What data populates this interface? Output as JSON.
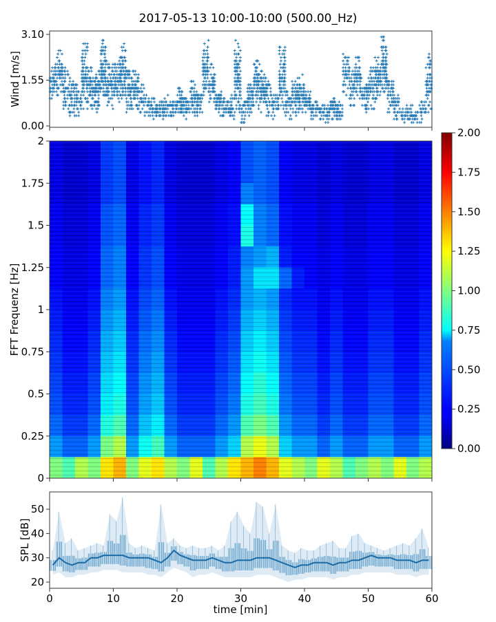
{
  "chart_data": [
    {
      "type": "scatter",
      "title": "2017-05-13 10:00-10:00 (500.00_Hz)",
      "xlabel": "",
      "ylabel": "Wind [m/s]",
      "xlim": [
        0,
        60
      ],
      "ylim": [
        0,
        3.1
      ],
      "ytick_labels": [
        "3.10",
        "1.55",
        "0.00"
      ],
      "yticks": [
        3.1,
        1.55,
        0
      ],
      "xticks": [
        0,
        10,
        20,
        30,
        40,
        50,
        60
      ],
      "marker": "+",
      "color": "#1f77b4",
      "minutes": [
        0,
        1,
        2,
        3,
        4,
        5,
        6,
        7,
        8,
        9,
        10,
        11,
        12,
        13,
        14,
        15,
        16,
        17,
        18,
        19,
        20,
        21,
        22,
        23,
        24,
        25,
        26,
        27,
        28,
        29,
        30,
        31,
        32,
        33,
        34,
        35,
        36,
        37,
        38,
        39,
        40,
        41,
        42,
        43,
        44,
        45,
        46,
        47,
        48,
        49,
        50,
        51,
        52,
        53,
        54,
        55,
        56,
        57,
        58,
        59
      ],
      "wind_min": [
        0.9,
        1.0,
        0.6,
        0.3,
        0.3,
        0.6,
        0.6,
        0.5,
        0.8,
        0.6,
        0.7,
        0.8,
        0.5,
        0.6,
        0.3,
        0.3,
        0.2,
        0.2,
        0.2,
        0.2,
        0.3,
        0.2,
        0.4,
        0.3,
        0.9,
        0.7,
        0.3,
        0.2,
        0.2,
        0.3,
        0.1,
        0.3,
        0.6,
        0.5,
        0.3,
        0.2,
        0.5,
        0.2,
        0.4,
        0.5,
        0.3,
        0.2,
        0.1,
        0.1,
        0.2,
        0.1,
        1.0,
        0.7,
        0.8,
        0.5,
        0.6,
        0.8,
        0.9,
        0.5,
        0.2,
        0.1,
        0.1,
        0.1,
        0.1,
        0.4
      ],
      "wind_max": [
        2.1,
        2.6,
        2.0,
        1.6,
        1.4,
        2.9,
        2.0,
        2.0,
        2.9,
        2.2,
        2.3,
        2.8,
        1.9,
        2.0,
        1.4,
        1.0,
        0.9,
        0.9,
        1.1,
        0.9,
        1.3,
        1.0,
        1.6,
        1.2,
        2.9,
        2.2,
        1.3,
        0.9,
        1.1,
        2.9,
        1.0,
        1.5,
        2.3,
        1.9,
        1.5,
        1.1,
        2.8,
        1.2,
        1.7,
        1.8,
        1.2,
        0.9,
        0.9,
        0.7,
        1.0,
        0.9,
        2.5,
        2.0,
        2.4,
        1.6,
        2.0,
        2.4,
        3.1,
        1.6,
        1.1,
        0.6,
        0.7,
        0.5,
        0.9,
        2.6
      ]
    },
    {
      "type": "heatmap",
      "ylabel": "FFT Frequenz [Hz]",
      "xlim": [
        0,
        60
      ],
      "ylim": [
        0,
        2
      ],
      "ytick_labels": [
        "0",
        "0.25",
        "0.5",
        "0.75",
        "1",
        "1.25",
        "1.5",
        "1.75",
        "2"
      ],
      "yticks": [
        0,
        0.25,
        0.5,
        0.75,
        1,
        1.25,
        1.5,
        1.75,
        2
      ],
      "time_bin_minutes": 2,
      "freq_bin_hz": 0.125,
      "colormap": "jet",
      "clim": [
        0,
        2
      ],
      "colorbar_tick_labels": [
        "0.00",
        "0.25",
        "0.50",
        "0.75",
        "1.00",
        "1.25",
        "1.50",
        "1.75",
        "2.00"
      ],
      "values_top_to_bottom": [
        [
          0.2,
          0.16,
          0.16,
          0.2,
          0.36,
          0.4,
          0.2,
          0.28,
          0.32,
          0.2,
          0.16,
          0.16,
          0.16,
          0.2,
          0.24,
          0.4,
          0.44,
          0.4,
          0.24,
          0.2,
          0.2,
          0.16,
          0.2,
          0.16,
          0.16,
          0.2,
          0.2,
          0.16,
          0.16,
          0.2
        ],
        [
          0.2,
          0.16,
          0.16,
          0.2,
          0.36,
          0.4,
          0.2,
          0.28,
          0.32,
          0.2,
          0.16,
          0.16,
          0.16,
          0.2,
          0.24,
          0.4,
          0.44,
          0.4,
          0.24,
          0.2,
          0.2,
          0.16,
          0.2,
          0.16,
          0.16,
          0.2,
          0.2,
          0.16,
          0.16,
          0.2
        ],
        [
          0.2,
          0.16,
          0.16,
          0.2,
          0.36,
          0.4,
          0.2,
          0.28,
          0.32,
          0.2,
          0.16,
          0.16,
          0.16,
          0.2,
          0.24,
          0.5,
          0.44,
          0.4,
          0.24,
          0.2,
          0.2,
          0.16,
          0.2,
          0.16,
          0.16,
          0.2,
          0.2,
          0.16,
          0.16,
          0.2
        ],
        [
          0.23,
          0.18,
          0.18,
          0.23,
          0.41,
          0.45,
          0.23,
          0.32,
          0.36,
          0.23,
          0.18,
          0.18,
          0.18,
          0.23,
          0.27,
          0.75,
          0.5,
          0.45,
          0.27,
          0.23,
          0.23,
          0.18,
          0.23,
          0.18,
          0.18,
          0.23,
          0.23,
          0.18,
          0.18,
          0.23
        ],
        [
          0.23,
          0.18,
          0.18,
          0.23,
          0.41,
          0.45,
          0.23,
          0.32,
          0.36,
          0.23,
          0.18,
          0.18,
          0.18,
          0.23,
          0.27,
          0.8,
          0.5,
          0.45,
          0.27,
          0.23,
          0.23,
          0.18,
          0.23,
          0.18,
          0.18,
          0.23,
          0.23,
          0.18,
          0.18,
          0.23
        ],
        [
          0.25,
          0.2,
          0.2,
          0.25,
          0.45,
          0.5,
          0.25,
          0.35,
          0.4,
          0.25,
          0.2,
          0.2,
          0.2,
          0.25,
          0.3,
          0.5,
          0.55,
          0.6,
          0.3,
          0.25,
          0.25,
          0.2,
          0.25,
          0.2,
          0.2,
          0.25,
          0.25,
          0.2,
          0.2,
          0.25
        ],
        [
          0.25,
          0.2,
          0.2,
          0.25,
          0.45,
          0.5,
          0.25,
          0.35,
          0.4,
          0.25,
          0.2,
          0.2,
          0.2,
          0.25,
          0.3,
          0.55,
          0.7,
          0.7,
          0.45,
          0.3,
          0.25,
          0.2,
          0.25,
          0.2,
          0.2,
          0.25,
          0.25,
          0.2,
          0.2,
          0.25
        ],
        [
          0.28,
          0.22,
          0.22,
          0.28,
          0.5,
          0.55,
          0.28,
          0.39,
          0.44,
          0.28,
          0.22,
          0.22,
          0.22,
          0.28,
          0.33,
          0.55,
          0.6,
          0.55,
          0.33,
          0.28,
          0.28,
          0.22,
          0.28,
          0.22,
          0.22,
          0.28,
          0.28,
          0.22,
          0.22,
          0.28
        ],
        [
          0.3,
          0.24,
          0.24,
          0.3,
          0.54,
          0.6,
          0.3,
          0.42,
          0.48,
          0.3,
          0.24,
          0.24,
          0.24,
          0.3,
          0.36,
          0.6,
          0.66,
          0.6,
          0.36,
          0.3,
          0.3,
          0.24,
          0.3,
          0.24,
          0.24,
          0.3,
          0.3,
          0.24,
          0.24,
          0.3
        ],
        [
          0.33,
          0.26,
          0.26,
          0.33,
          0.59,
          0.65,
          0.33,
          0.46,
          0.52,
          0.33,
          0.26,
          0.26,
          0.26,
          0.33,
          0.39,
          0.65,
          0.72,
          0.65,
          0.39,
          0.33,
          0.33,
          0.26,
          0.33,
          0.26,
          0.26,
          0.33,
          0.33,
          0.26,
          0.26,
          0.33
        ],
        [
          0.35,
          0.28,
          0.28,
          0.35,
          0.63,
          0.7,
          0.35,
          0.49,
          0.56,
          0.35,
          0.28,
          0.28,
          0.28,
          0.35,
          0.42,
          0.7,
          0.77,
          0.7,
          0.42,
          0.35,
          0.35,
          0.28,
          0.35,
          0.28,
          0.28,
          0.35,
          0.35,
          0.28,
          0.28,
          0.35
        ],
        [
          0.38,
          0.3,
          0.3,
          0.38,
          0.68,
          0.75,
          0.38,
          0.53,
          0.6,
          0.38,
          0.3,
          0.3,
          0.3,
          0.38,
          0.45,
          0.75,
          0.83,
          0.75,
          0.45,
          0.38,
          0.38,
          0.3,
          0.38,
          0.3,
          0.3,
          0.38,
          0.38,
          0.3,
          0.3,
          0.38
        ],
        [
          0.4,
          0.32,
          0.32,
          0.4,
          0.72,
          0.8,
          0.4,
          0.56,
          0.64,
          0.4,
          0.32,
          0.32,
          0.32,
          0.4,
          0.48,
          0.8,
          0.88,
          0.8,
          0.48,
          0.4,
          0.4,
          0.32,
          0.4,
          0.32,
          0.32,
          0.4,
          0.4,
          0.32,
          0.32,
          0.4
        ],
        [
          0.45,
          0.36,
          0.36,
          0.45,
          0.81,
          0.9,
          0.45,
          0.63,
          0.72,
          0.45,
          0.36,
          0.36,
          0.36,
          0.45,
          0.54,
          0.9,
          0.99,
          0.9,
          0.54,
          0.45,
          0.45,
          0.36,
          0.45,
          0.36,
          0.36,
          0.45,
          0.45,
          0.36,
          0.36,
          0.45
        ],
        [
          0.55,
          0.44,
          0.44,
          0.55,
          0.99,
          1.1,
          0.55,
          0.77,
          0.88,
          0.55,
          0.44,
          0.44,
          0.44,
          0.55,
          0.66,
          1.1,
          1.21,
          1.1,
          0.66,
          0.55,
          0.55,
          0.44,
          0.55,
          0.44,
          0.44,
          0.55,
          0.55,
          0.44,
          0.44,
          0.55
        ],
        [
          1.0,
          0.9,
          1.1,
          1.0,
          1.3,
          1.4,
          1.0,
          1.2,
          1.3,
          1.1,
          1.0,
          1.2,
          0.9,
          1.1,
          1.3,
          1.4,
          1.5,
          1.4,
          1.2,
          1.1,
          1.0,
          1.2,
          1.1,
          0.9,
          1.0,
          1.1,
          1.0,
          1.2,
          1.0,
          1.1
        ]
      ]
    },
    {
      "type": "line",
      "xlabel": "time [min]",
      "ylabel": "SPL [dB]",
      "xlim": [
        0,
        60
      ],
      "ylim": [
        17.4,
        57
      ],
      "xtick_labels": [
        "0",
        "10",
        "20",
        "30",
        "40",
        "50",
        "60"
      ],
      "xticks": [
        0,
        10,
        20,
        30,
        40,
        50,
        60
      ],
      "ytick_labels": [
        "20",
        "30",
        "40",
        "50"
      ],
      "yticks": [
        20,
        30,
        40,
        50
      ],
      "color": "#1f77b4",
      "minutes": [
        0,
        1,
        2,
        3,
        4,
        5,
        6,
        7,
        8,
        9,
        10,
        11,
        12,
        13,
        14,
        15,
        16,
        17,
        18,
        19,
        20,
        21,
        22,
        23,
        24,
        25,
        26,
        27,
        28,
        29,
        30,
        31,
        32,
        33,
        34,
        35,
        36,
        37,
        38,
        39,
        40,
        41,
        42,
        43,
        44,
        45,
        46,
        47,
        48,
        49,
        50,
        51,
        52,
        53,
        54,
        55,
        56,
        57,
        58,
        59
      ],
      "spl_median": [
        27,
        30,
        28,
        27,
        28,
        28,
        30,
        30,
        31,
        31,
        31,
        31,
        30,
        30,
        30,
        30,
        29,
        28,
        30,
        33,
        31,
        30,
        29,
        29,
        29,
        30,
        29,
        28,
        28,
        29,
        29,
        29,
        30,
        30,
        30,
        29,
        28,
        27,
        26,
        27,
        27,
        28,
        28,
        28,
        27,
        28,
        28,
        29,
        29,
        30,
        31,
        30,
        30,
        30,
        29,
        29,
        29,
        28,
        29,
        29
      ],
      "spl_max": [
        33,
        49,
        36,
        38,
        33,
        34,
        35,
        36,
        35,
        48,
        45,
        55,
        36,
        34,
        35,
        34,
        33,
        52,
        36,
        38,
        35,
        34,
        35,
        34,
        34,
        35,
        33,
        35,
        45,
        49,
        43,
        40,
        53,
        51,
        40,
        52,
        35,
        33,
        32,
        34,
        33,
        33,
        35,
        36,
        37,
        34,
        34,
        39,
        40,
        36,
        35,
        34,
        33,
        34,
        35,
        36,
        35,
        38,
        42,
        34
      ],
      "spl_min": [
        23,
        24,
        22,
        22,
        23,
        23,
        24,
        24,
        25,
        25,
        25,
        24,
        24,
        24,
        24,
        23,
        23,
        22,
        24,
        26,
        25,
        24,
        22,
        23,
        23,
        24,
        23,
        22,
        22,
        22,
        22,
        22,
        23,
        23,
        23,
        22,
        21,
        20,
        21,
        21,
        22,
        22,
        22,
        22,
        21,
        22,
        22,
        23,
        23,
        24,
        24,
        24,
        24,
        24,
        23,
        23,
        23,
        22,
        23,
        23
      ]
    }
  ]
}
